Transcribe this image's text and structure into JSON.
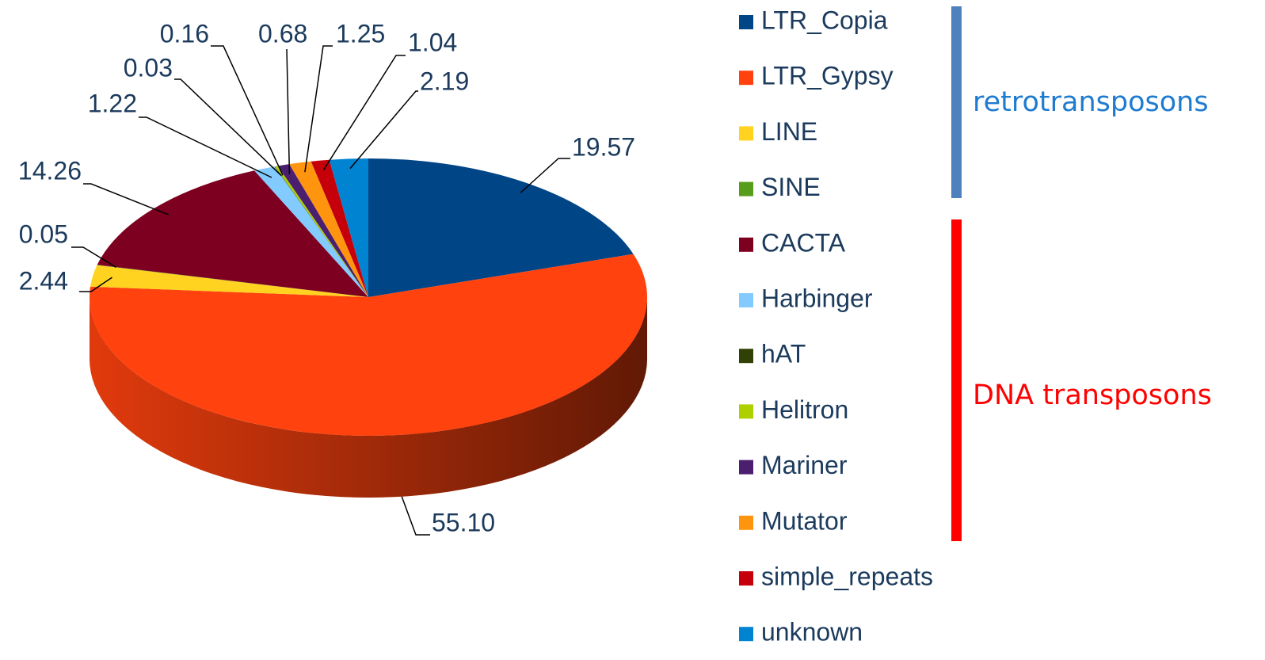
{
  "chart_data": {
    "type": "pie3d",
    "categories": [
      "LTR_Copia",
      "LTR_Gypsy",
      "LINE",
      "SINE",
      "CACTA",
      "Harbinger",
      "hAT",
      "Helitron",
      "Mariner",
      "Mutator",
      "simple_repeats",
      "unknown"
    ],
    "values": [
      19.57,
      55.1,
      2.44,
      0.05,
      14.26,
      1.22,
      0.03,
      0.16,
      0.68,
      1.25,
      1.04,
      2.19
    ],
    "value_labels": [
      "19.57",
      "55.10",
      "2.44",
      "0.05",
      "14.26",
      "1.22",
      "0.03",
      "0.16",
      "0.68",
      "1.25",
      "1.04",
      "2.19"
    ],
    "colors": [
      "#004586",
      "#ff420e",
      "#ffd320",
      "#579d1c",
      "#7e0021",
      "#83caff",
      "#314004",
      "#aecf00",
      "#4b1f6f",
      "#ff950e",
      "#c5000b",
      "#0084d1"
    ],
    "legend": "right",
    "groups": [
      {
        "label": "retrotransposons",
        "color": "#4f81bd",
        "text_color": "#1f7bd0"
      },
      {
        "label": "DNA transposons",
        "color": "#ff0000",
        "text_color": "#ff0000"
      }
    ]
  }
}
